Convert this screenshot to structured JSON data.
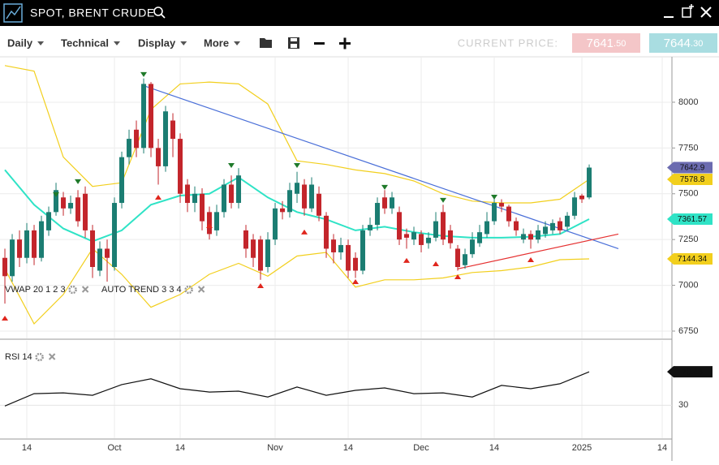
{
  "header": {
    "title": "SPOT, BRENT CRUDE"
  },
  "toolbar": {
    "menus": [
      "Daily",
      "Technical",
      "Display",
      "More"
    ],
    "price_caption": "CURRENT PRICE:",
    "bid": "7641.50",
    "ask": "7644.30"
  },
  "chart_data": [
    {
      "type": "candlestick",
      "up_color": "#1b7d72",
      "down_color": "#c3252b",
      "open": [
        7150,
        7050,
        7250,
        7150,
        7300,
        7150,
        7300,
        7400,
        7480,
        7420,
        7480,
        7500,
        7300,
        7080,
        7200,
        7100,
        7450,
        7700,
        7850,
        7750,
        8100,
        7750,
        7650,
        7900,
        7800,
        7550,
        7450,
        7500,
        7400,
        7300,
        7400,
        7550,
        7450,
        7300,
        7250,
        7250,
        7100,
        7250,
        7420,
        7400,
        7500,
        7550,
        7420,
        7500,
        7380,
        7250,
        7180,
        7220,
        7150,
        7080,
        7300,
        7330,
        7480,
        7420,
        7400,
        7280,
        7250,
        7280,
        7230,
        7260,
        7400,
        7300,
        7200,
        7110,
        7170,
        7230,
        7280,
        7350,
        7450,
        7430,
        7350,
        7250,
        7280,
        7250,
        7280,
        7300,
        7350,
        7320,
        7380,
        7490,
        7480
      ],
      "high": [
        7200,
        7280,
        7300,
        7340,
        7330,
        7380,
        7430,
        7560,
        7510,
        7490,
        7520,
        7540,
        7330,
        7240,
        7250,
        7480,
        7730,
        7850,
        7900,
        8130,
        8110,
        7800,
        7980,
        7940,
        7830,
        7580,
        7540,
        7530,
        7430,
        7440,
        7580,
        7600,
        7640,
        7330,
        7280,
        7270,
        7290,
        7450,
        7460,
        7560,
        7620,
        7580,
        7590,
        7540,
        7400,
        7280,
        7260,
        7250,
        7180,
        7330,
        7370,
        7480,
        7520,
        7510,
        7430,
        7310,
        7320,
        7300,
        7290,
        7400,
        7440,
        7330,
        7220,
        7200,
        7290,
        7330,
        7400,
        7480,
        7470,
        7440,
        7370,
        7310,
        7300,
        7330,
        7350,
        7360,
        7370,
        7400,
        7510,
        7500,
        7660
      ],
      "low": [
        6900,
        7020,
        7100,
        7120,
        7110,
        7130,
        7270,
        7380,
        7380,
        7390,
        7320,
        7260,
        7040,
        7050,
        7020,
        7080,
        7420,
        7660,
        7700,
        7720,
        7700,
        7550,
        7620,
        7700,
        7450,
        7400,
        7400,
        7300,
        7250,
        7270,
        7370,
        7420,
        7420,
        7150,
        7100,
        7030,
        7070,
        7220,
        7360,
        7370,
        7450,
        7380,
        7400,
        7350,
        7150,
        7120,
        7140,
        7040,
        7040,
        7060,
        7270,
        7300,
        7390,
        7390,
        7220,
        7200,
        7220,
        7180,
        7200,
        7240,
        7220,
        7200,
        7080,
        7090,
        7150,
        7210,
        7260,
        7330,
        7400,
        7320,
        7270,
        7230,
        7200,
        7230,
        7260,
        7280,
        7280,
        7300,
        7360,
        7450,
        7470
      ],
      "close": [
        7050,
        7250,
        7150,
        7300,
        7150,
        7350,
        7400,
        7520,
        7420,
        7450,
        7350,
        7300,
        7100,
        7200,
        7150,
        7450,
        7700,
        7800,
        7750,
        8100,
        7750,
        7650,
        7950,
        7800,
        7500,
        7450,
        7500,
        7350,
        7280,
        7400,
        7550,
        7450,
        7600,
        7200,
        7150,
        7080,
        7250,
        7420,
        7400,
        7520,
        7560,
        7420,
        7550,
        7380,
        7200,
        7180,
        7220,
        7080,
        7080,
        7300,
        7330,
        7450,
        7420,
        7480,
        7250,
        7260,
        7290,
        7220,
        7260,
        7350,
        7250,
        7230,
        7100,
        7170,
        7250,
        7290,
        7350,
        7450,
        7430,
        7350,
        7300,
        7280,
        7250,
        7300,
        7320,
        7340,
        7300,
        7380,
        7480,
        7470,
        7642.9
      ],
      "close_color": "#6b6bb0",
      "xlim": [
        -0.67,
        91.33
      ],
      "ylim": [
        6710,
        8248
      ],
      "yticks": [
        6750,
        7000,
        7250,
        7500,
        7750,
        8000
      ],
      "xticks": [
        {
          "value": 3,
          "label": "14"
        },
        {
          "value": 15,
          "label": "Oct"
        },
        {
          "value": 24,
          "label": "14"
        },
        {
          "value": 37,
          "label": "Nov"
        },
        {
          "value": 47,
          "label": "14"
        },
        {
          "value": 57,
          "label": "Dec"
        },
        {
          "value": 67,
          "label": "14"
        },
        {
          "value": 79,
          "label": "2025"
        },
        {
          "value": 90,
          "label": "14"
        }
      ],
      "grid": true,
      "overlays": [
        {
          "color": "#f2cf1d",
          "x": [
            0,
            4,
            8,
            12,
            16,
            20,
            24,
            28,
            32,
            36,
            40,
            44,
            48,
            52,
            56,
            60,
            64,
            68,
            72,
            76,
            80
          ],
          "values": [
            8200,
            8170,
            7700,
            7540,
            7560,
            7960,
            8100,
            8110,
            8100,
            7990,
            7680,
            7660,
            7630,
            7610,
            7570,
            7500,
            7460,
            7450,
            7450,
            7470,
            7578.8
          ]
        },
        {
          "color": "#2fe3c6",
          "x": [
            0,
            4,
            8,
            12,
            16,
            20,
            24,
            28,
            32,
            36,
            40,
            44,
            48,
            52,
            56,
            60,
            64,
            68,
            72,
            76,
            80
          ],
          "values": [
            7630,
            7440,
            7310,
            7240,
            7300,
            7440,
            7490,
            7500,
            7590,
            7480,
            7400,
            7360,
            7300,
            7320,
            7290,
            7270,
            7260,
            7260,
            7265,
            7280,
            7361.57
          ]
        },
        {
          "color": "#f2cf1d",
          "x": [
            0,
            4,
            8,
            12,
            16,
            20,
            24,
            28,
            32,
            36,
            40,
            44,
            48,
            52,
            56,
            60,
            64,
            68,
            72,
            76,
            80
          ],
          "values": [
            7090,
            6790,
            6950,
            7200,
            7060,
            6880,
            6950,
            7060,
            7120,
            7050,
            7160,
            7180,
            6990,
            7030,
            7030,
            7040,
            7070,
            7080,
            7100,
            7140,
            7144.34
          ]
        },
        {
          "color": "#4a6fd8",
          "x": [
            19,
            84
          ],
          "values": [
            8090,
            7200
          ]
        },
        {
          "color": "#e53030",
          "x": [
            62,
            84
          ],
          "values": [
            7090,
            7280
          ]
        }
      ],
      "sell_signals": {
        "color": "#1f7a2a",
        "x": [
          7,
          10,
          19,
          31,
          40,
          52,
          60,
          67
        ],
        "values": [
          7495,
          7566,
          8151,
          7654,
          7654,
          7535,
          7464,
          7481
        ]
      },
      "buy_signals": {
        "color": "#e0261d",
        "x": [
          0,
          21,
          28,
          35,
          41,
          48,
          55,
          59,
          62,
          72
        ],
        "values": [
          6821,
          7481,
          7326,
          6998,
          7291,
          7020,
          7136,
          7118,
          7047,
          7140
        ]
      },
      "indicators": [
        "VWAP 20 1 2 3",
        "AUTO TREND 3 3 4"
      ]
    },
    {
      "type": "line",
      "title": "RSI 14",
      "color": "#111111",
      "x": [
        0,
        4,
        8,
        12,
        16,
        20,
        24,
        28,
        32,
        36,
        40,
        44,
        48,
        52,
        56,
        60,
        64,
        68,
        72,
        76,
        80
      ],
      "values": [
        29,
        44,
        45,
        42,
        55,
        62,
        50,
        46,
        47,
        40,
        52,
        42,
        48,
        51,
        44,
        45,
        40,
        54,
        50,
        56,
        70.48
      ],
      "xlim": [
        -0.67,
        91.33
      ],
      "ylim": [
        -10,
        108
      ],
      "yticks": [
        30
      ]
    }
  ]
}
